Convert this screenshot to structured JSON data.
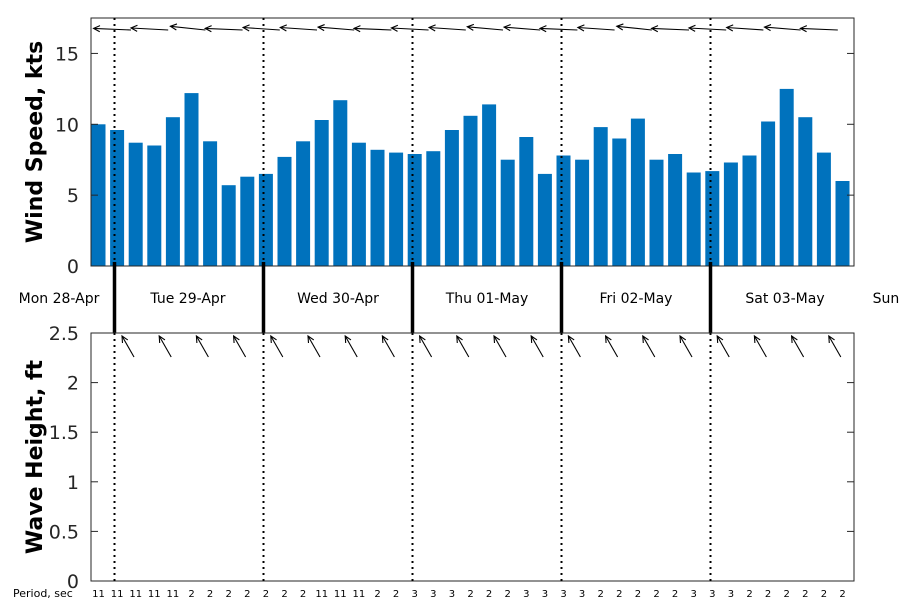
{
  "chart_data": [
    {
      "type": "bar",
      "ylabel": "Wind Speed, kts",
      "ylim": [
        0,
        17.5
      ],
      "yticks": [
        0,
        5,
        10,
        15
      ],
      "grid": false,
      "color": "#0072BD",
      "values": [
        10,
        9.6,
        8.7,
        8.5,
        10.5,
        12.2,
        8.8,
        5.7,
        6.3,
        6.5,
        7.7,
        8.8,
        10.3,
        11.7,
        8.7,
        8.2,
        8.0,
        7.9,
        8.1,
        9.6,
        10.6,
        11.4,
        7.5,
        9.1,
        6.5,
        7.8,
        7.5,
        9.8,
        9.0,
        10.4,
        7.5,
        7.9,
        6.6,
        6.7,
        7.3,
        7.8,
        10.2,
        12.5,
        10.5,
        8.0,
        6.0
      ],
      "arrow_color": "#000000"
    },
    {
      "type": "line",
      "ylabel": "Wave Height, ft",
      "ylim": [
        0,
        2.5
      ],
      "yticks": [
        "0",
        "0.5",
        "1",
        "1.5",
        "2",
        "2.5"
      ],
      "grid": false,
      "period_label": "Period, sec",
      "periods": [
        "11",
        "11",
        "11",
        "11",
        "11",
        "2",
        "2",
        "2",
        "2",
        "2",
        "2",
        "2",
        "11",
        "11",
        "11",
        "2",
        "2",
        "3",
        "3",
        "3",
        "2",
        "2",
        "2",
        "3",
        "3",
        "3",
        "3",
        "2",
        "2",
        "2",
        "2",
        "2",
        "3",
        "3",
        "3",
        "2",
        "2",
        "2",
        "2",
        "2",
        "2"
      ]
    }
  ],
  "day_labels": [
    "Mon 28-Apr",
    "Tue 29-Apr",
    "Wed 30-Apr",
    "Thu 01-May",
    "Fri 02-May",
    "Sat 03-May",
    "Sun"
  ]
}
